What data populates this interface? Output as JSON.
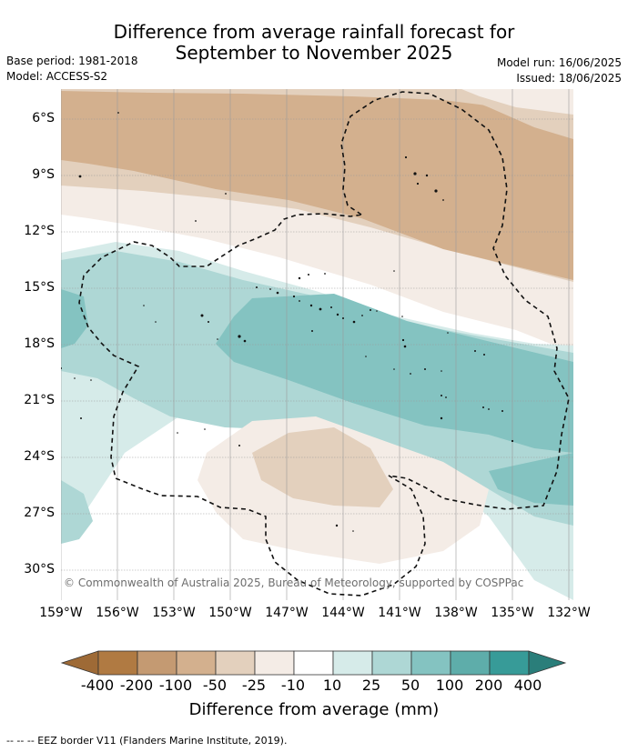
{
  "title": {
    "line1": "Difference from average rainfall forecast for",
    "line2": "September to November 2025"
  },
  "meta_left": {
    "base_period": "Base period: 1981-2018",
    "model": "Model: ACCESS-S2"
  },
  "meta_right": {
    "model_run": "Model run: 16/06/2025",
    "issued": "Issued: 18/06/2025"
  },
  "map": {
    "lat_labels": [
      "6°S",
      "9°S",
      "12°S",
      "15°S",
      "18°S",
      "21°S",
      "24°S",
      "27°S",
      "30°S"
    ],
    "lon_labels": [
      "159°W",
      "156°W",
      "153°W",
      "150°W",
      "147°W",
      "144°W",
      "141°W",
      "138°W",
      "135°W",
      "132°W"
    ],
    "copyright": "© Commonwealth of Australia 2025, Bureau of Meteorology, supported by COSPPac"
  },
  "colorbar": {
    "tick_values": [
      "-400",
      "-200",
      "-100",
      "-50",
      "-25",
      "-10",
      "10",
      "25",
      "50",
      "100",
      "200",
      "400"
    ],
    "colors": [
      "#9e6a36",
      "#b07a42",
      "#c49a72",
      "#d3b08e",
      "#e3d0bd",
      "#f4ece6",
      "#ffffff",
      "#d6ebe9",
      "#aed7d5",
      "#84c3c1",
      "#5eadaa",
      "#379b98",
      "#2a7e7a"
    ],
    "label": "Difference from average (mm)"
  },
  "legend_line": "-- -- -- EEZ border V11 (Flanders Marine Institute, 2019)."
}
